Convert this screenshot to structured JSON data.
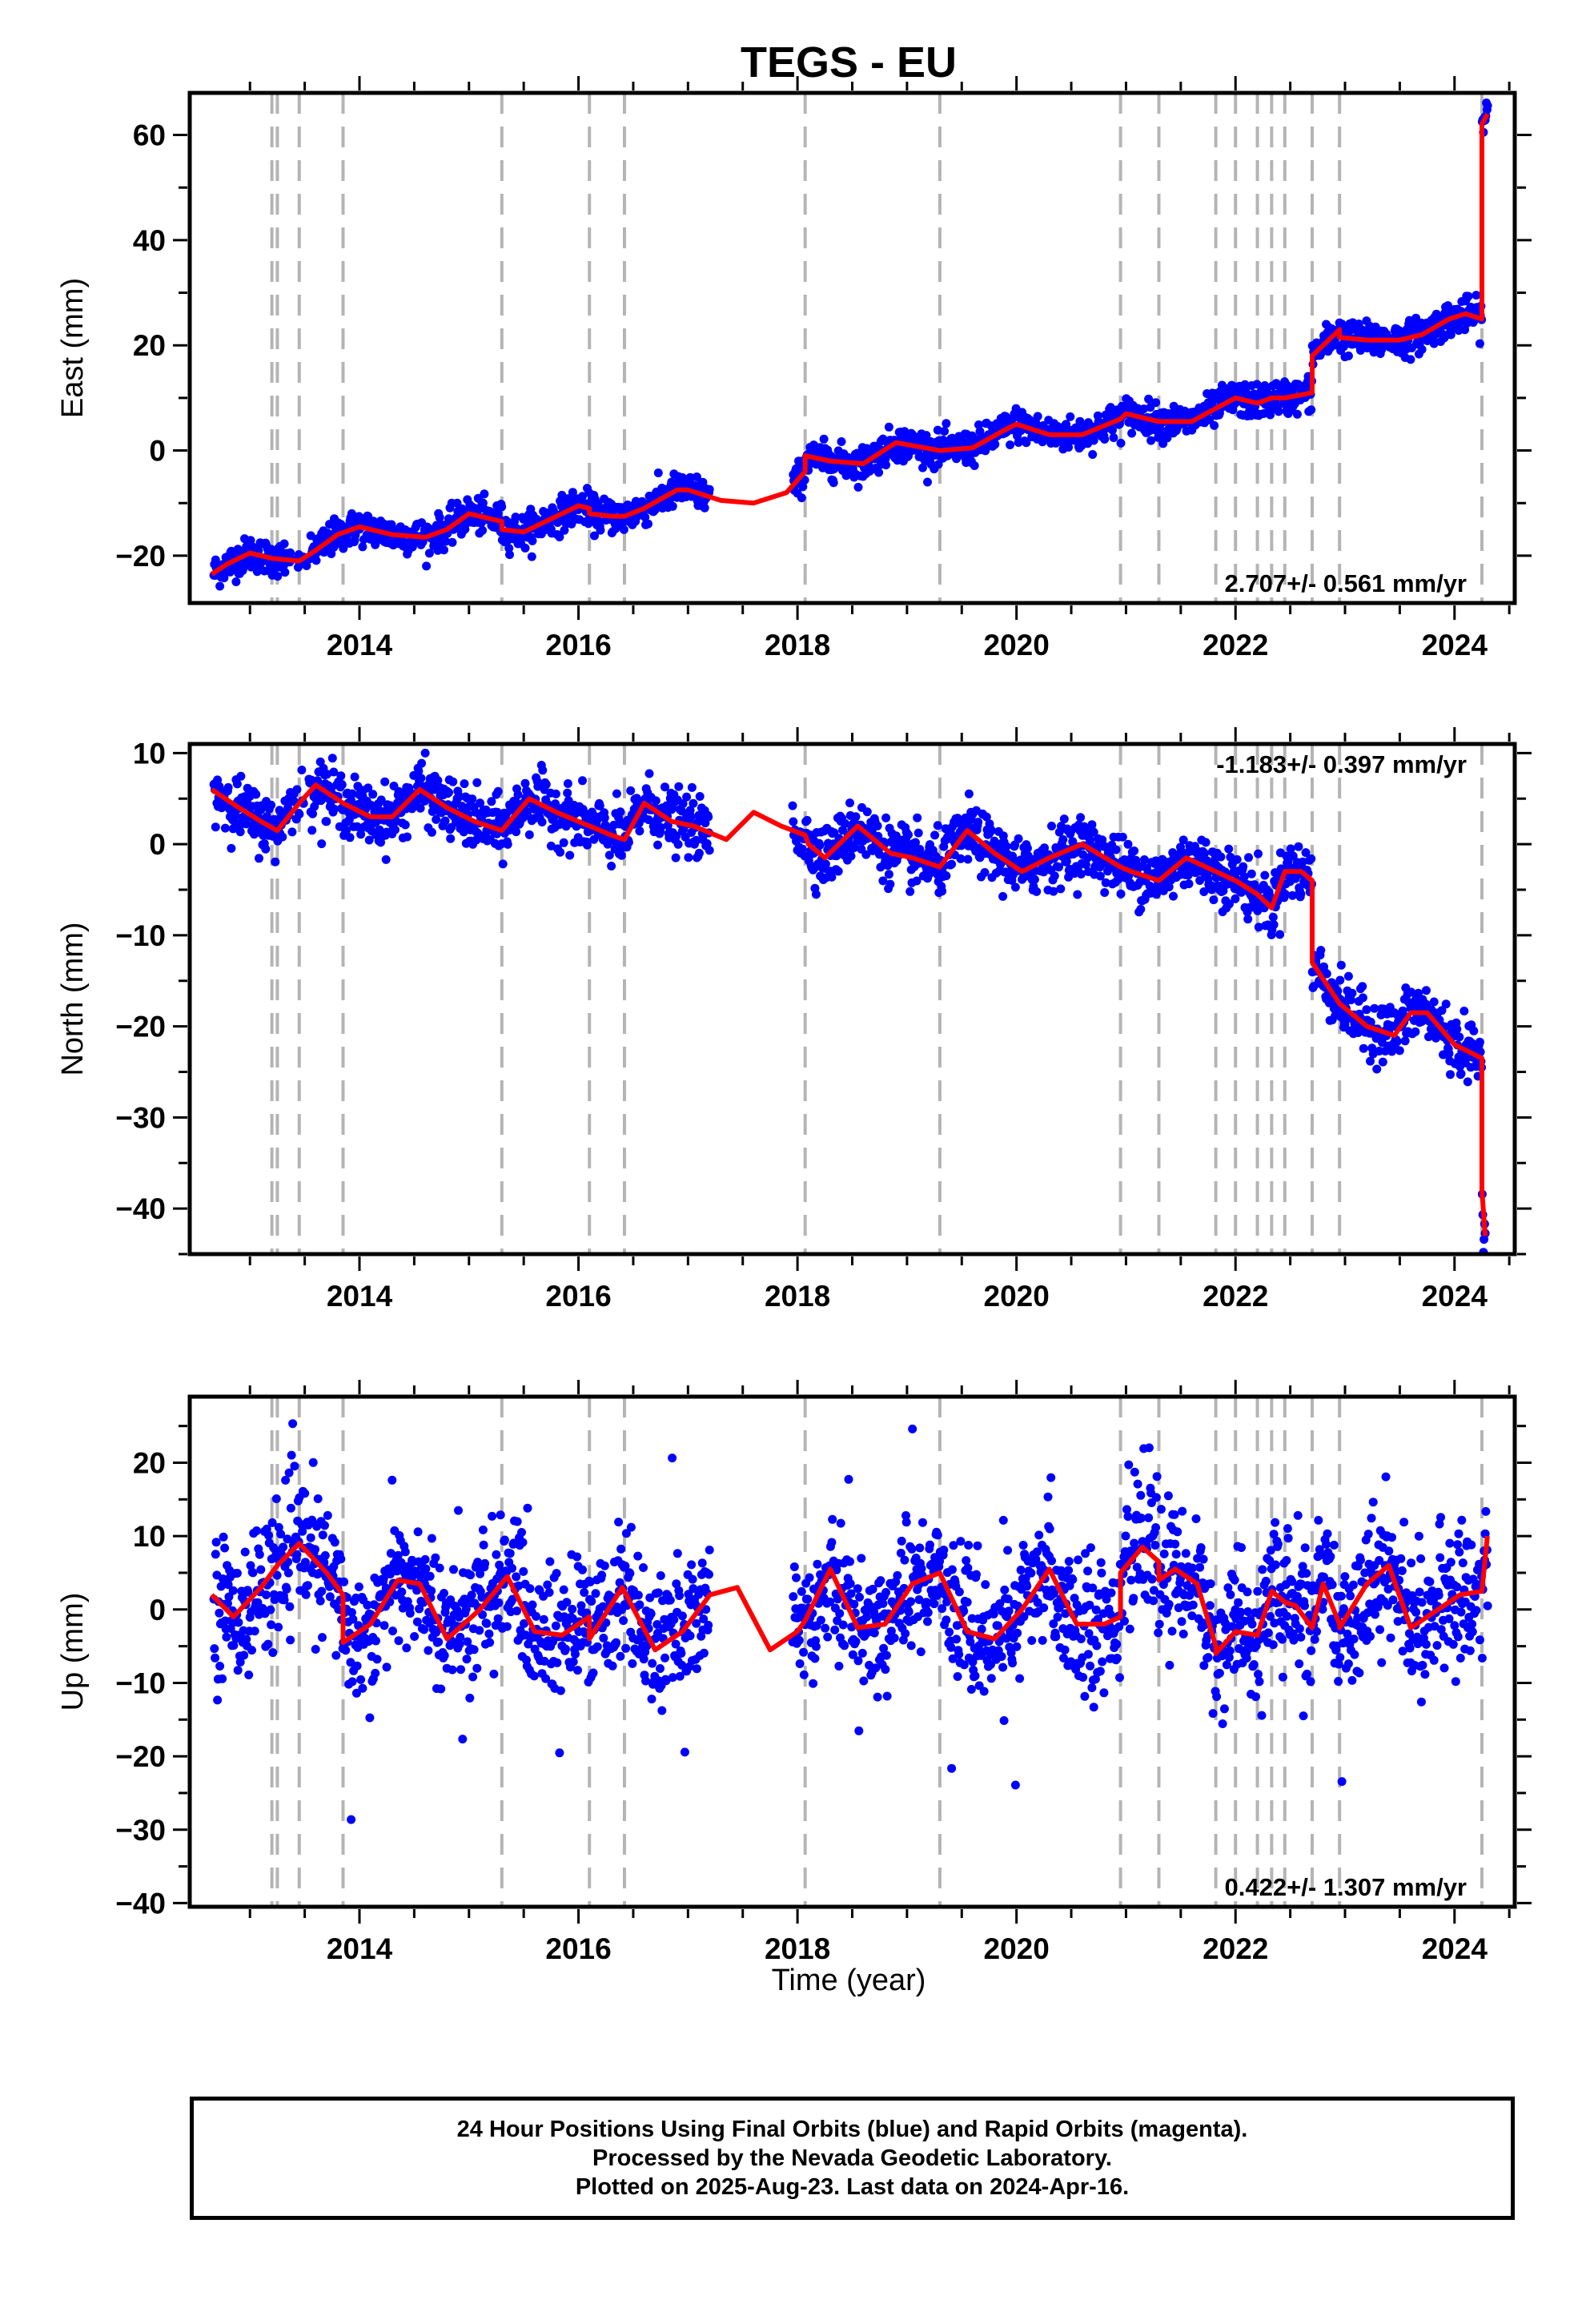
{
  "chart_data": {
    "type": "scatter",
    "title": "TEGS - EU",
    "xlabel": "Time (year)",
    "x_ticks": [
      "2014",
      "2016",
      "2018",
      "2020",
      "2022",
      "2024"
    ],
    "xlim": [
      2012.45,
      2024.55
    ],
    "equipment_change_years": [
      2013.2,
      2013.25,
      2013.45,
      2013.85,
      2015.3,
      2016.1,
      2016.42,
      2018.07,
      2019.3,
      2020.95,
      2021.3,
      2021.82,
      2022.0,
      2022.2,
      2022.33,
      2022.45,
      2022.7,
      2022.95,
      2024.25
    ],
    "colors": {
      "points": "#0000ff",
      "model": "#ff0000",
      "breaks": "#b4b4b4"
    },
    "panels": [
      {
        "name": "east",
        "ylabel": "East (mm)",
        "ylim": [
          -29,
          68
        ],
        "y_ticks": [
          -20,
          0,
          20,
          40,
          60
        ],
        "y_tick_labels": [
          "−20",
          "0",
          "20",
          "40",
          "60"
        ],
        "velocity_label": "2.707+/- 0.561 mm/yr",
        "velocity_position": "bottom-right",
        "model_x": [
          2012.65,
          2012.8,
          2013.0,
          2013.2,
          2013.45,
          2013.6,
          2013.8,
          2014.0,
          2014.3,
          2014.6,
          2014.8,
          2015.0,
          2015.3,
          2015.3,
          2015.5,
          2015.7,
          2016.0,
          2016.1,
          2016.1,
          2016.3,
          2016.42,
          2016.6,
          2016.9,
          2017.0,
          2017.3,
          2017.6,
          2017.9,
          2018.07,
          2018.07,
          2018.3,
          2018.6,
          2018.9,
          2019.3,
          2019.6,
          2019.9,
          2020.0,
          2020.3,
          2020.6,
          2020.95,
          2021.0,
          2021.3,
          2021.6,
          2021.82,
          2022.0,
          2022.2,
          2022.33,
          2022.45,
          2022.7,
          2022.7,
          2022.95,
          2022.95,
          2023.2,
          2023.5,
          2023.7,
          2023.95,
          2024.1,
          2024.25,
          2024.25,
          2024.3
        ],
        "model_y": [
          -23.5,
          -21.5,
          -19.5,
          -20.5,
          -21,
          -19,
          -16,
          -14.5,
          -16,
          -16.5,
          -15,
          -12,
          -13.5,
          -15,
          -15.5,
          -13.5,
          -10.5,
          -11,
          -12,
          -12.5,
          -12.5,
          -11,
          -7.5,
          -7.5,
          -9.5,
          -10,
          -8,
          -4,
          -1,
          -2,
          -2.5,
          1.5,
          0,
          0.5,
          4,
          5,
          3,
          3,
          6,
          7,
          5.5,
          5.5,
          8,
          10,
          9,
          10,
          10,
          11,
          18,
          23,
          21.5,
          21,
          21,
          22,
          25,
          26,
          25,
          62,
          64
        ],
        "noise": 1.6
      },
      {
        "name": "north",
        "ylabel": "North (mm)",
        "ylim": [
          -45,
          11
        ],
        "y_ticks": [
          -40,
          -30,
          -20,
          -10,
          0,
          10
        ],
        "y_tick_labels": [
          "−40",
          "−30",
          "−20",
          "−10",
          "0",
          "10"
        ],
        "velocity_label": "-1.183+/- 0.397 mm/yr",
        "velocity_position": "top-right",
        "model_x": [
          2012.65,
          2012.9,
          2013.1,
          2013.25,
          2013.45,
          2013.6,
          2013.85,
          2014.1,
          2014.3,
          2014.55,
          2014.8,
          2015.05,
          2015.3,
          2015.55,
          2015.8,
          2016.1,
          2016.3,
          2016.42,
          2016.6,
          2016.85,
          2017.05,
          2017.35,
          2017.6,
          2017.85,
          2018.07,
          2018.1,
          2018.25,
          2018.55,
          2018.85,
          2019.05,
          2019.3,
          2019.55,
          2019.8,
          2020.05,
          2020.3,
          2020.6,
          2020.95,
          2021.05,
          2021.3,
          2021.55,
          2021.82,
          2022.0,
          2022.2,
          2022.33,
          2022.45,
          2022.6,
          2022.7,
          2022.7,
          2022.95,
          2023.2,
          2023.45,
          2023.6,
          2023.75,
          2024.0,
          2024.25,
          2024.25,
          2024.28
        ],
        "model_y": [
          6,
          4,
          2.5,
          1.5,
          4.5,
          6.5,
          4.5,
          3,
          3,
          6,
          4,
          2.5,
          1.5,
          5,
          3.5,
          2,
          1,
          0.5,
          4.5,
          2.5,
          2,
          0.5,
          3.5,
          2,
          1,
          0,
          -1.5,
          2,
          -1,
          -1.5,
          -2.5,
          1.5,
          -1,
          -3,
          -1.5,
          0,
          -2.5,
          -3,
          -4,
          -1.5,
          -3,
          -4,
          -5.5,
          -7,
          -3,
          -3,
          -4,
          -13,
          -17.5,
          -20,
          -21,
          -18.5,
          -18.5,
          -22,
          -23.5,
          -38,
          -43
        ],
        "noise": 1.6
      },
      {
        "name": "up",
        "ylabel": "Up (mm)",
        "ylim": [
          -40.5,
          29
        ],
        "y_ticks": [
          -40,
          -30,
          -20,
          -10,
          0,
          10,
          20
        ],
        "y_tick_labels": [
          "−40",
          "−30",
          "−20",
          "−10",
          "0",
          "10",
          "20"
        ],
        "velocity_label": "0.422+/- 1.307 mm/yr",
        "velocity_position": "bottom-right",
        "model_x": [
          2012.65,
          2012.85,
          2013.1,
          2013.25,
          2013.45,
          2013.7,
          2013.85,
          2013.85,
          2014.1,
          2014.35,
          2014.55,
          2014.8,
          2015.1,
          2015.35,
          2015.6,
          2015.85,
          2016.1,
          2016.1,
          2016.4,
          2016.7,
          2016.95,
          2017.2,
          2017.45,
          2017.75,
          2018.0,
          2018.07,
          2018.3,
          2018.55,
          2018.8,
          2019.05,
          2019.3,
          2019.55,
          2019.8,
          2020.05,
          2020.3,
          2020.55,
          2020.8,
          2020.95,
          2020.95,
          2021.15,
          2021.3,
          2021.3,
          2021.45,
          2021.65,
          2021.82,
          2021.82,
          2022.0,
          2022.2,
          2022.33,
          2022.45,
          2022.55,
          2022.7,
          2022.8,
          2022.95,
          2022.95,
          2023.2,
          2023.4,
          2023.6,
          2023.85,
          2024.05,
          2024.25,
          2024.3
        ],
        "model_y": [
          2,
          -1,
          3,
          6,
          9,
          5,
          2,
          -4.5,
          -2,
          4,
          3.5,
          -4,
          0,
          4.5,
          -3,
          -3.5,
          -1,
          -4,
          3,
          -5.5,
          -3,
          2,
          3,
          -5.5,
          -3,
          -1.5,
          5.5,
          -2.5,
          -2,
          3.5,
          5,
          -3,
          -4,
          0,
          5.5,
          -2,
          -2,
          -1,
          5,
          8.5,
          6.5,
          4,
          5.5,
          3.5,
          -5,
          -6,
          -3,
          -3.5,
          2.5,
          1,
          0.5,
          -2.5,
          3.5,
          -2,
          -2.5,
          3.5,
          6,
          -2.5,
          0,
          2,
          2.5,
          10
        ],
        "noise": 4.5
      }
    ]
  },
  "footer": {
    "line1": "24 Hour Positions Using Final Orbits (blue) and Rapid Orbits (magenta).",
    "line2": "Processed by the Nevada Geodetic Laboratory.",
    "line3": "Plotted on 2025-Aug-23. Last data on 2024-Apr-16."
  }
}
